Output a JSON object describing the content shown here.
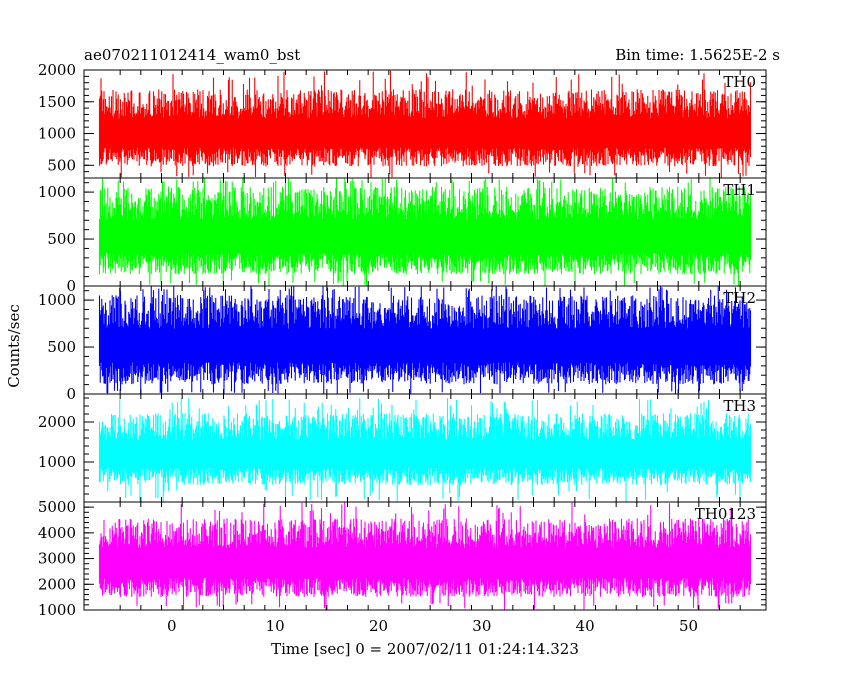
{
  "header": {
    "obs_id": "ae070211012414_wam0_bst",
    "bin_time": "Bin time: 1.5625E-2 s"
  },
  "axes": {
    "ylabel": "Counts/sec",
    "xlabel": "Time [sec] 0 = 2007/02/11 01:24:14.323",
    "xlim": [
      -8.5,
      57.5
    ],
    "xticks": [
      0,
      10,
      20,
      30,
      40,
      50
    ],
    "xtick_labels": [
      "0",
      "10",
      "20",
      "30",
      "40",
      "50"
    ]
  },
  "chart_data": [
    {
      "type": "line",
      "name": "TH0",
      "color": "#ff0000",
      "ylim": [
        300,
        2000
      ],
      "yticks": [
        500,
        1000,
        1500,
        2000
      ],
      "ytick_labels": [
        "500",
        "1000",
        "1500",
        "2000"
      ],
      "x_range": [
        -7.0,
        56.0
      ],
      "bin_time": 0.015625,
      "typical_range": [
        400,
        1750
      ],
      "max_observed": 2000,
      "mean_approx": 1000
    },
    {
      "type": "line",
      "name": "TH1",
      "color": "#00ff00",
      "ylim": [
        0,
        1150
      ],
      "yticks": [
        0,
        500,
        1000
      ],
      "ytick_labels": [
        "0",
        "500",
        "1000"
      ],
      "x_range": [
        -7.0,
        56.0
      ],
      "bin_time": 0.015625,
      "typical_range": [
        60,
        1100
      ],
      "max_observed": 1150,
      "mean_approx": 560
    },
    {
      "type": "line",
      "name": "TH2",
      "color": "#0000ff",
      "ylim": [
        0,
        1150
      ],
      "yticks": [
        0,
        500,
        1000
      ],
      "ytick_labels": [
        "0",
        "500",
        "1000"
      ],
      "x_range": [
        -7.0,
        56.0
      ],
      "bin_time": 0.015625,
      "typical_range": [
        40,
        1100
      ],
      "max_observed": 1150,
      "mean_approx": 560
    },
    {
      "type": "line",
      "name": "TH3",
      "color": "#00ffff",
      "ylim": [
        0,
        2700
      ],
      "yticks": [
        1000,
        2000
      ],
      "ytick_labels": [
        "1000",
        "2000"
      ],
      "x_range": [
        -7.0,
        56.0
      ],
      "bin_time": 0.015625,
      "typical_range": [
        300,
        2300
      ],
      "max_observed": 2600,
      "mean_approx": 1150
    },
    {
      "type": "line",
      "name": "TH0123",
      "color": "#ff00ff",
      "ylim": [
        1000,
        5200
      ],
      "yticks": [
        1000,
        2000,
        3000,
        4000,
        5000
      ],
      "ytick_labels": [
        "1000",
        "2000",
        "3000",
        "4000",
        "5000"
      ],
      "x_range": [
        -7.0,
        56.0
      ],
      "bin_time": 0.015625,
      "typical_range": [
        1300,
        4700
      ],
      "max_observed": 5200,
      "mean_approx": 2900
    }
  ]
}
